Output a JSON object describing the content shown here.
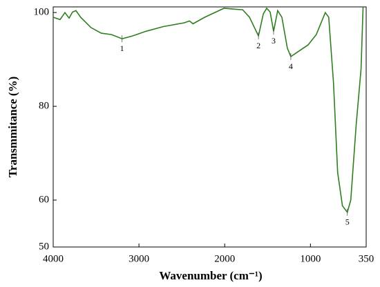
{
  "chart_data": {
    "type": "line",
    "xlabel": "Wavenumber (cm⁻¹)",
    "ylabel": "Transmmitance (%)",
    "xlim": [
      4000,
      350
    ],
    "ylim": [
      50,
      101.2
    ],
    "xticks": [
      4000,
      3000,
      2000,
      1000,
      350
    ],
    "yticks": [
      50,
      60,
      80,
      100
    ],
    "series": [
      {
        "color": "#2e7d1e",
        "x": [
          4000,
          3920,
          3863,
          3815,
          3775,
          3735,
          3680,
          3560,
          3440,
          3320,
          3197,
          3076,
          2916,
          2715,
          2474,
          2410,
          2370,
          2233,
          2008,
          1870,
          1791,
          1711,
          1606,
          1550,
          1510,
          1470,
          1430,
          1382,
          1333,
          1269,
          1229,
          1149,
          1028,
          932,
          827,
          787,
          731,
          683,
          627,
          570,
          530,
          466,
          410,
          386
        ],
        "values": [
          99,
          98.5,
          100,
          98.8,
          100.1,
          100.4,
          99,
          96.8,
          95.6,
          95.3,
          94.4,
          95,
          96,
          97,
          97.8,
          98.2,
          97.6,
          99,
          100.9,
          100.7,
          100.6,
          99,
          95,
          99.7,
          100.9,
          100.1,
          96,
          100.4,
          99,
          92.4,
          90.6,
          91.6,
          93.1,
          95.3,
          100,
          99,
          85,
          65.9,
          58.8,
          57.4,
          60,
          76.2,
          88,
          101.2
        ]
      }
    ],
    "annotations": [
      {
        "text": "1",
        "x": 3197,
        "y": 94.4
      },
      {
        "text": "2",
        "x": 1606,
        "y": 95
      },
      {
        "text": "3",
        "x": 1430,
        "y": 96
      },
      {
        "text": "4",
        "x": 1229,
        "y": 90.6
      },
      {
        "text": "5",
        "x": 570,
        "y": 57.4
      }
    ]
  }
}
